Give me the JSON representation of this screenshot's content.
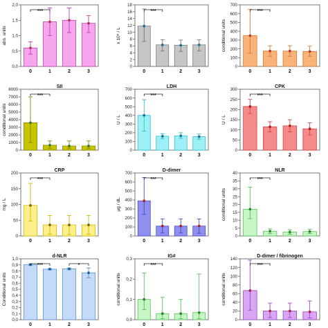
{
  "chart_data": [
    {
      "type": "bar",
      "title": "",
      "ylabel": "abs. units",
      "categories": [
        "0",
        "1",
        "2",
        "3"
      ],
      "values": [
        0.6,
        1.45,
        1.5,
        1.4
      ],
      "err_low": [
        0.2,
        0.45,
        0.4,
        0.3
      ],
      "err_high": [
        0.2,
        0.45,
        0.4,
        0.25
      ],
      "ylim": [
        0,
        2.0
      ],
      "yticks": [
        "0,0",
        "0,5",
        "1,0",
        "1,5",
        "2,0"
      ],
      "significance": [
        {
          "from": "0",
          "to": "1",
          "label": "***"
        }
      ],
      "colors": {
        "fill": "#f5a6ec",
        "edge": "#c13fb5",
        "marker": "#c02f5a"
      }
    },
    {
      "type": "bar",
      "title": "",
      "ylabel": "x 10⁹ / L",
      "categories": [
        "0",
        "1",
        "2",
        "3"
      ],
      "values": [
        11.8,
        6.3,
        6.2,
        6.3
      ],
      "err_low": [
        4.5,
        1.8,
        1.8,
        1.8
      ],
      "err_high": [
        5,
        1.5,
        1.5,
        1.5
      ],
      "ylim": [
        0,
        18
      ],
      "yticks": [
        "0",
        "2",
        "4",
        "6",
        "8",
        "10",
        "12",
        "14",
        "16",
        "18"
      ],
      "significance": [
        {
          "from": "0",
          "to": "1",
          "label": "***"
        }
      ],
      "colors": {
        "fill": "#c6c6c6",
        "edge": "#777777",
        "marker": "#1f6f9a"
      }
    },
    {
      "type": "bar",
      "title": "",
      "ylabel": "conditional units",
      "categories": [
        "0",
        "1",
        "2",
        "3"
      ],
      "values": [
        350,
        175,
        175,
        170
      ],
      "err_low": [
        200,
        60,
        60,
        55
      ],
      "err_high": [
        300,
        60,
        60,
        60
      ],
      "ylim": [
        0,
        700
      ],
      "yticks": [
        "0",
        "100",
        "200",
        "300",
        "400",
        "500",
        "600",
        "700"
      ],
      "significance": [
        {
          "from": "0",
          "to": "1",
          "label": "***"
        }
      ],
      "colors": {
        "fill": "#f7b37a",
        "edge": "#d97a2b",
        "marker": "#c0392b"
      }
    },
    {
      "type": "bar",
      "title": "SII",
      "ylabel": "conditional units",
      "categories": [
        "0",
        "1",
        "2",
        "3"
      ],
      "values": [
        3600,
        650,
        550,
        550
      ],
      "err_low": [
        2600,
        400,
        350,
        350
      ],
      "err_high": [
        3400,
        550,
        650,
        650
      ],
      "ylim": [
        0,
        8000
      ],
      "yticks": [
        "0",
        "1000",
        "2000",
        "3000",
        "4000",
        "5000",
        "6000",
        "7000",
        "8000"
      ],
      "significance": [
        {
          "from": "0",
          "to": "1",
          "label": "***"
        }
      ],
      "colors": {
        "fill": "#c7c400",
        "edge": "#8a8600",
        "marker": "#3f7a2b"
      }
    },
    {
      "type": "bar",
      "title": "LDH",
      "ylabel": "U / L",
      "categories": [
        "0",
        "1",
        "2",
        "3"
      ],
      "values": [
        400,
        160,
        165,
        155
      ],
      "err_low": [
        180,
        30,
        30,
        30
      ],
      "err_high": [
        180,
        30,
        35,
        30
      ],
      "ylim": [
        0,
        700
      ],
      "yticks": [
        "0",
        "100",
        "200",
        "300",
        "400",
        "500",
        "600",
        "700"
      ],
      "significance": [
        {
          "from": "0",
          "to": "1",
          "label": "***"
        }
      ],
      "colors": {
        "fill": "#9ff0f5",
        "edge": "#29c3cf",
        "marker": "#1f6f9a"
      }
    },
    {
      "type": "bar",
      "title": "CPK",
      "ylabel": "U / L",
      "categories": [
        "0",
        "1",
        "2",
        "3"
      ],
      "values": [
        215,
        115,
        120,
        105
      ],
      "err_low": [
        35,
        25,
        30,
        30
      ],
      "err_high": [
        35,
        25,
        30,
        30
      ],
      "ylim": [
        0,
        300
      ],
      "yticks": [
        "0",
        "50",
        "100",
        "150",
        "200",
        "250",
        "300"
      ],
      "significance": [
        {
          "from": "0",
          "to": "1",
          "label": "***"
        }
      ],
      "colors": {
        "fill": "#f58a8a",
        "edge": "#d64545",
        "marker": "#b02020"
      }
    },
    {
      "type": "bar",
      "title": "CRP",
      "ylabel": "mg / L",
      "categories": [
        "0",
        "1",
        "2",
        "3"
      ],
      "values": [
        97,
        35,
        35,
        35
      ],
      "err_low": [
        50,
        30,
        30,
        30
      ],
      "err_high": [
        70,
        30,
        30,
        30
      ],
      "ylim": [
        0,
        200
      ],
      "yticks": [
        "0",
        "50",
        "100",
        "150",
        "200"
      ],
      "significance": [
        {
          "from": "0",
          "to": "1",
          "label": "***"
        }
      ],
      "colors": {
        "fill": "#fdf08c",
        "edge": "#d4b800",
        "marker": "#7a6a00"
      }
    },
    {
      "type": "bar",
      "title": "D-dimer",
      "ylabel": "µg / dL",
      "categories": [
        "0",
        "1",
        "2",
        "3"
      ],
      "values": [
        390,
        110,
        110,
        110
      ],
      "err_low": [
        150,
        75,
        75,
        80
      ],
      "err_high": [
        260,
        80,
        80,
        80
      ],
      "ylim": [
        0,
        700
      ],
      "yticks": [
        "0",
        "100",
        "200",
        "300",
        "400",
        "500",
        "600",
        "700"
      ],
      "significance": [
        {
          "from": "0",
          "to": "1",
          "label": "***"
        }
      ],
      "colors": {
        "fill": "#8f8ff0",
        "edge": "#4b4bc4",
        "marker": "#b02020"
      }
    },
    {
      "type": "bar",
      "title": "NLR",
      "ylabel": "conditional units",
      "categories": [
        "0",
        "1",
        "2",
        "3"
      ],
      "values": [
        17,
        3,
        2.5,
        2.8
      ],
      "err_low": [
        6,
        1.5,
        1.5,
        1.3
      ],
      "err_high": [
        14,
        1.5,
        1.5,
        1.5
      ],
      "ylim": [
        0,
        40
      ],
      "yticks": [
        "0",
        "5",
        "10",
        "15",
        "20",
        "25",
        "30",
        "35",
        "40"
      ],
      "significance": [
        {
          "from": "0",
          "to": "1",
          "label": "***"
        }
      ],
      "colors": {
        "fill": "#c6f5c6",
        "edge": "#5abf5a",
        "marker": "#2a8a2a"
      }
    },
    {
      "type": "bar",
      "title": "d-NLR",
      "ylabel": "Conditional units",
      "categories": [
        "0",
        "1",
        "2",
        "3"
      ],
      "values": [
        0.905,
        0.83,
        0.835,
        0.77
      ],
      "err_low": [
        0.015,
        0.01,
        0.015,
        0.08
      ],
      "err_high": [
        0.015,
        0.01,
        0.015,
        0.08
      ],
      "ylim": [
        0,
        1.0
      ],
      "yticks": [
        "0,0",
        "0,1",
        "0,2",
        "0,3",
        "0,4",
        "0,5",
        "0,6",
        "0,7",
        "0,8",
        "0,9",
        "1,0"
      ],
      "significance": [
        {
          "from": "0",
          "to": "1",
          "label": "***"
        },
        {
          "from": "2",
          "to": "3",
          "label": "*"
        }
      ],
      "colors": {
        "fill": "#c3dbf7",
        "edge": "#5b8fd6",
        "marker": "#1f5f9a"
      }
    },
    {
      "type": "bar",
      "title": "IG#",
      "ylabel": "conditional units",
      "categories": [
        "0",
        "1",
        "2",
        "3"
      ],
      "values": [
        0.1,
        0.03,
        0.03,
        0.035
      ],
      "err_low": [
        0.05,
        0.025,
        0.025,
        0.03
      ],
      "err_high": [
        0.13,
        0.08,
        0.07,
        0.19
      ],
      "ylim": [
        0,
        0.3
      ],
      "yticks": [
        "0,0",
        "0,1",
        "0,2",
        "0,3"
      ],
      "significance": [
        {
          "from": "0",
          "to": "1",
          "label": "***"
        }
      ],
      "colors": {
        "fill": "#c6f5c6",
        "edge": "#5abf5a",
        "marker": "#2a8a2a"
      }
    },
    {
      "type": "bar",
      "title": "D-dimer / fibrinogen",
      "ylabel": "conditional units",
      "categories": [
        "0",
        "1",
        "2",
        "3"
      ],
      "values": [
        67,
        20,
        20,
        18
      ],
      "err_low": [
        45,
        15,
        15,
        14
      ],
      "err_high": [
        70,
        18,
        18,
        25
      ],
      "ylim": [
        0,
        140
      ],
      "yticks": [
        "0",
        "20",
        "40",
        "60",
        "80",
        "100",
        "120",
        "140"
      ],
      "significance": [
        {
          "from": "0",
          "to": "1",
          "label": "***"
        }
      ],
      "colors": {
        "fill": "#d9a6f5",
        "edge": "#9a45c9",
        "marker": "#b02050"
      }
    }
  ]
}
